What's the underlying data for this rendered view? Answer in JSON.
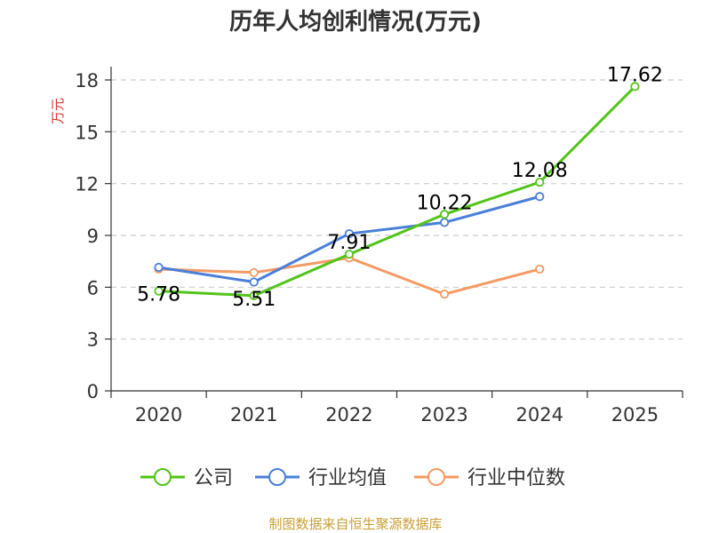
{
  "chart_data": {
    "type": "line",
    "title": "历年人均创利情况(万元)",
    "ylabel": "万元",
    "xlabel": "",
    "ylim": [
      0,
      18
    ],
    "yticks": [
      0,
      3,
      6,
      9,
      12,
      15,
      18
    ],
    "categories": [
      "2020",
      "2021",
      "2022",
      "2023",
      "2024",
      "2025"
    ],
    "grid": true,
    "legend_position": "bottom",
    "series": [
      {
        "name": "公司",
        "color": "#52c41a",
        "values": [
          5.78,
          5.51,
          7.91,
          10.22,
          12.08,
          17.62
        ],
        "labels": [
          "5.78",
          "5.51",
          "7.91",
          "10.22",
          "12.08",
          "17.62"
        ]
      },
      {
        "name": "行业均值",
        "color": "#4a7fd9",
        "values": [
          7.15,
          6.3,
          9.1,
          9.75,
          11.25,
          null
        ]
      },
      {
        "name": "行业中位数",
        "color": "#f59a64",
        "values": [
          7.05,
          6.85,
          7.7,
          5.6,
          7.05,
          null
        ]
      }
    ],
    "source": "制图数据来自恒生聚源数据库",
    "colors": {
      "axis": "#333333",
      "grid": "#cccccc",
      "ylabel": "#e03030",
      "source": "#c8a038"
    }
  }
}
